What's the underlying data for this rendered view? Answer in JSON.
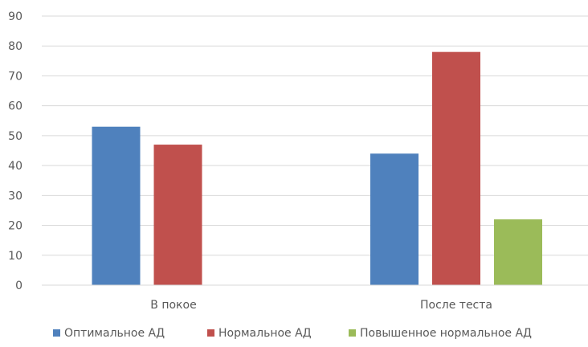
{
  "chart_data": {
    "type": "bar",
    "categories": [
      "В покое",
      "После теста"
    ],
    "series": [
      {
        "name": "Оптимальное АД",
        "color": "#4f81bd",
        "values": [
          53,
          44
        ]
      },
      {
        "name": "Нормальное АД",
        "color": "#c0504d",
        "values": [
          47,
          78
        ]
      },
      {
        "name": "Повышенное нормальное АД",
        "color": "#9bbb59",
        "values": [
          0,
          22
        ]
      }
    ],
    "ylim": [
      0,
      90
    ],
    "yticks": [
      0,
      10,
      20,
      30,
      40,
      50,
      60,
      70,
      80,
      90
    ],
    "grid": true,
    "legend": "bottom"
  }
}
